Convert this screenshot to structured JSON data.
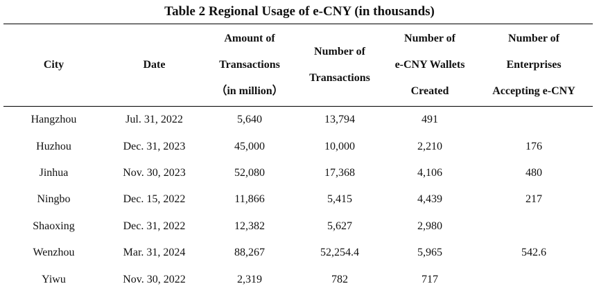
{
  "title": "Table 2 Regional Usage of e-CNY (in thousands)",
  "headers": {
    "city": [
      "City"
    ],
    "date": [
      "Date"
    ],
    "amount": [
      "Amount of",
      "Transactions",
      "（in million）"
    ],
    "number": [
      "Number of",
      "Transactions"
    ],
    "wallets": [
      "Number of",
      "e-CNY Wallets",
      "Created"
    ],
    "enterprises": [
      "Number of",
      "Enterprises",
      "Accepting e-CNY"
    ]
  },
  "rows": [
    {
      "city": "Hangzhou",
      "date": "Jul. 31, 2022",
      "amount": "5,640",
      "number": "13,794",
      "wallets": "491",
      "enterprises": ""
    },
    {
      "city": "Huzhou",
      "date": "Dec. 31, 2023",
      "amount": "45,000",
      "number": "10,000",
      "wallets": "2,210",
      "enterprises": "176"
    },
    {
      "city": "Jinhua",
      "date": "Nov. 30, 2023",
      "amount": "52,080",
      "number": "17,368",
      "wallets": "4,106",
      "enterprises": "480"
    },
    {
      "city": "Ningbo",
      "date": "Dec. 15, 2022",
      "amount": "11,866",
      "number": "5,415",
      "wallets": "4,439",
      "enterprises": "217"
    },
    {
      "city": "Shaoxing",
      "date": "Dec. 31, 2022",
      "amount": "12,382",
      "number": "5,627",
      "wallets": "2,980",
      "enterprises": ""
    },
    {
      "city": "Wenzhou",
      "date": "Mar. 31, 2024",
      "amount": "88,267",
      "number": "52,254.4",
      "wallets": "5,965",
      "enterprises": "542.6"
    },
    {
      "city": "Yiwu",
      "date": "Nov. 30, 2022",
      "amount": "2,319",
      "number": "782",
      "wallets": "717",
      "enterprises": ""
    }
  ]
}
